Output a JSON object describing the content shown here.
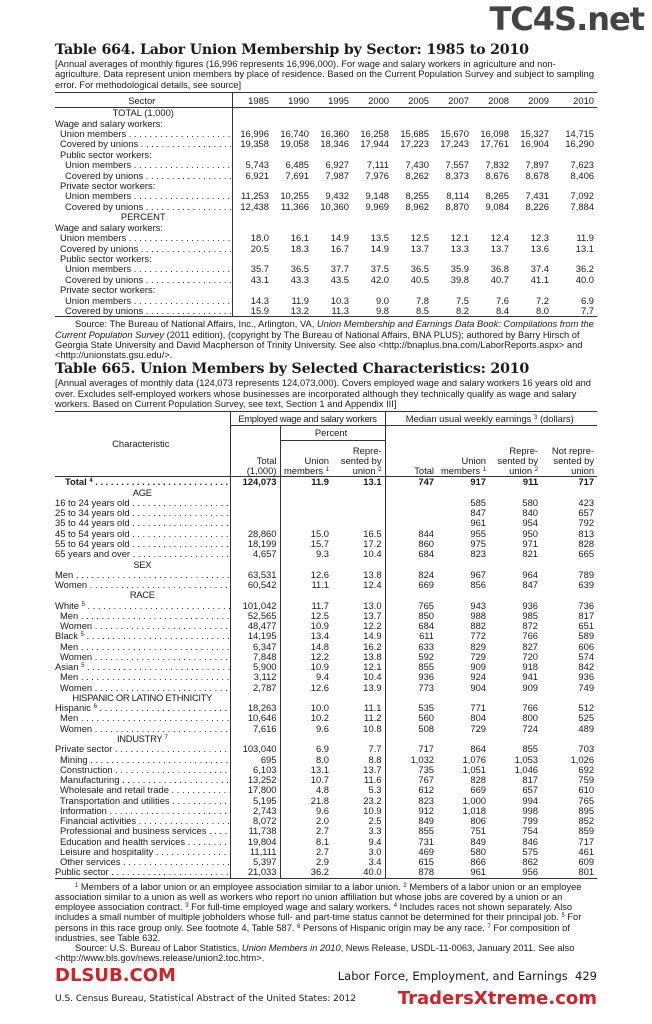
{
  "watermarks": {
    "top": "TC4S.net",
    "middle": "DLSUB.COM",
    "bottom": "TradersXtreme.com"
  },
  "table664": {
    "title": "Table 664. Labor Union Membership by Sector: 1985 to 2010",
    "intro": "[Annual averages of monthly figures (16,996 represents 16,996,000). For wage and salary workers in agriculture and non-agriculture. Data represent union members by place of residence. Based on the Current Population Survey and subject to sampling error. For methodological details, see source]",
    "sector_header": "Sector",
    "years": [
      "1985",
      "1990",
      "1995",
      "2000",
      "2005",
      "2007",
      "2008",
      "2009",
      "2010"
    ],
    "rows": [
      {
        "type": "section",
        "label": "TOTAL (1,000)"
      },
      {
        "type": "group",
        "label": "Wage and salary workers:",
        "indent": 0
      },
      {
        "type": "data",
        "label": "Union members",
        "indent": 1,
        "values": [
          "16,996",
          "16,740",
          "16,360",
          "16,258",
          "15,685",
          "15,670",
          "16,098",
          "15,327",
          "14,715"
        ]
      },
      {
        "type": "data",
        "label": "Covered by unions",
        "indent": 1,
        "values": [
          "19,358",
          "19,058",
          "18,346",
          "17,944",
          "17,223",
          "17,243",
          "17,761",
          "16,904",
          "16,290"
        ]
      },
      {
        "type": "group",
        "label": "Public sector workers:",
        "indent": 1
      },
      {
        "type": "data",
        "label": "Union members",
        "indent": 2,
        "values": [
          "5,743",
          "6,485",
          "6,927",
          "7,111",
          "7,430",
          "7,557",
          "7,832",
          "7,897",
          "7,623"
        ]
      },
      {
        "type": "data",
        "label": "Covered by unions",
        "indent": 2,
        "values": [
          "6,921",
          "7,691",
          "7,987",
          "7,976",
          "8,262",
          "8,373",
          "8,676",
          "8,678",
          "8,406"
        ]
      },
      {
        "type": "group",
        "label": "Private sector workers:",
        "indent": 1
      },
      {
        "type": "data",
        "label": "Union members",
        "indent": 2,
        "values": [
          "11,253",
          "10,255",
          "9,432",
          "9,148",
          "8,255",
          "8,114",
          "8,265",
          "7,431",
          "7,092"
        ]
      },
      {
        "type": "data",
        "label": "Covered by unions",
        "indent": 2,
        "values": [
          "12,438",
          "11,366",
          "10,360",
          "9,969",
          "8,962",
          "8,870",
          "9,084",
          "8,226",
          "7,884"
        ]
      },
      {
        "type": "section",
        "label": "PERCENT"
      },
      {
        "type": "group",
        "label": "Wage and salary workers:",
        "indent": 0
      },
      {
        "type": "data",
        "label": "Union members",
        "indent": 1,
        "values": [
          "18.0",
          "16.1",
          "14.9",
          "13.5",
          "12.5",
          "12.1",
          "12.4",
          "12.3",
          "11.9"
        ]
      },
      {
        "type": "data",
        "label": "Covered by unions",
        "indent": 1,
        "values": [
          "20.5",
          "18.3",
          "16.7",
          "14.9",
          "13.7",
          "13.3",
          "13.7",
          "13.6",
          "13.1"
        ]
      },
      {
        "type": "group",
        "label": "Public sector workers:",
        "indent": 1
      },
      {
        "type": "data",
        "label": "Union members",
        "indent": 2,
        "values": [
          "35.7",
          "36.5",
          "37.7",
          "37.5",
          "36.5",
          "35.9",
          "36.8",
          "37.4",
          "36.2"
        ]
      },
      {
        "type": "data",
        "label": "Covered by unions",
        "indent": 2,
        "values": [
          "43.1",
          "43.3",
          "43.5",
          "42.0",
          "40.5",
          "39.8",
          "40.7",
          "41.1",
          "40.0"
        ]
      },
      {
        "type": "group",
        "label": "Private sector workers:",
        "indent": 1
      },
      {
        "type": "data",
        "label": "Union members",
        "indent": 2,
        "values": [
          "14.3",
          "11.9",
          "10.3",
          "9.0",
          "7.8",
          "7.5",
          "7.6",
          "7.2",
          "6.9"
        ]
      },
      {
        "type": "data",
        "label": "Covered by unions",
        "indent": 2,
        "values": [
          "15.9",
          "13.2",
          "11.3",
          "9.8",
          "8.5",
          "8.2",
          "8.4",
          "8.0",
          "7.7"
        ]
      }
    ],
    "source": [
      {
        "text": "Source: The Bureau of National Affairs, Inc., Arlington, VA, ",
        "italic": false
      },
      {
        "text": "Union Membership and Earnings Data Book: Compilations from the Current Population Survey",
        "italic": true
      },
      {
        "text": " (2011 edition), (copyright by The Bureau of National Affairs, BNA PLUS); authored by Barry Hirsch of Georgia State University and David Macpherson of Trinity University. See also <http://bnaplus.bna.com/LaborReports.aspx> and <http://unionstats.gsu.edu/>.",
        "italic": false
      }
    ]
  },
  "table665": {
    "title": "Table 665. Union Members by Selected Characteristics: 2010",
    "intro": "[Annual averages of monthly data (124,073 represents 124,073,000). Covers employed wage and  salary workers 16 years old and over. Excludes self-employed workers whose businesses are incorporated although they technically qualify as  wage and salary workers. Based on Current Population Survey, see text, Section 1 and Appendix III]",
    "headers": {
      "characteristic": "Characteristic",
      "employed": "Employed wage and salary workers",
      "median": "Median usual weekly earnings",
      "median_sup": "3",
      "median_unit": "(dollars)",
      "percent": "Percent",
      "emp_total": [
        "Total",
        "(1,000)"
      ],
      "emp_union": {
        "lines": [
          "Union",
          "members"
        ],
        "sup": "1"
      },
      "emp_repr": {
        "lines": [
          "Repre-",
          "sented by",
          "union"
        ],
        "sup": "2"
      },
      "earn_total": [
        "Total"
      ],
      "earn_union": {
        "lines": [
          "Union",
          "members"
        ],
        "sup": "1"
      },
      "earn_repr": {
        "lines": [
          "Repre-",
          "sented by",
          "union"
        ],
        "sup": "2"
      },
      "earn_not": {
        "lines": [
          "Not repre-",
          "sented by",
          "union"
        ],
        "sup": ""
      }
    },
    "rows": [
      {
        "type": "data",
        "label": "Total",
        "sup": "4",
        "bold": true,
        "indent": 0,
        "values": [
          "124,073",
          "11.9",
          "13.1",
          "747",
          "917",
          "911",
          "717"
        ]
      },
      {
        "type": "section",
        "label": "AGE"
      },
      {
        "type": "data",
        "label": "16 to 24 years old",
        "indent": 0,
        "values": [
          null,
          null,
          null,
          null,
          "585",
          "580",
          "423"
        ]
      },
      {
        "type": "data",
        "label": "25 to 34 years old",
        "indent": 0,
        "values": [
          null,
          null,
          null,
          null,
          "847",
          "840",
          "657"
        ]
      },
      {
        "type": "data",
        "label": "35 to 44 years old",
        "indent": 0,
        "values": [
          null,
          null,
          null,
          null,
          "961",
          "954",
          "792"
        ]
      },
      {
        "type": "data",
        "label": "45 to 54 years old",
        "indent": 0,
        "values": [
          "28,860",
          "15.0",
          "16.5",
          "844",
          "955",
          "950",
          "813"
        ]
      },
      {
        "type": "data",
        "label": "55 to 64 years old",
        "indent": 0,
        "values": [
          "18,199",
          "15.7",
          "17.2",
          "860",
          "975",
          "971",
          "828"
        ]
      },
      {
        "type": "data",
        "label": "65 years and over",
        "indent": 0,
        "values": [
          "4,657",
          "9.3",
          "10.4",
          "684",
          "823",
          "821",
          "665"
        ]
      },
      {
        "type": "section",
        "label": "SEX"
      },
      {
        "type": "data",
        "label": "Men",
        "indent": 0,
        "values": [
          "63,531",
          "12.6",
          "13.8",
          "824",
          "967",
          "964",
          "789"
        ]
      },
      {
        "type": "data",
        "label": "Women",
        "indent": 0,
        "values": [
          "60,542",
          "11.1",
          "12.4",
          "669",
          "856",
          "847",
          "639"
        ]
      },
      {
        "type": "section",
        "label": "RACE"
      },
      {
        "type": "data",
        "label": "White",
        "sup": "5",
        "indent": 0,
        "values": [
          "101,042",
          "11.7",
          "13.0",
          "765",
          "943",
          "936",
          "736"
        ]
      },
      {
        "type": "data",
        "label": "Men",
        "indent": 1,
        "values": [
          "52,565",
          "12.5",
          "13.7",
          "850",
          "988",
          "985",
          "817"
        ]
      },
      {
        "type": "data",
        "label": "Women",
        "indent": 1,
        "values": [
          "48,477",
          "10.9",
          "12.2",
          "684",
          "882",
          "872",
          "651"
        ]
      },
      {
        "type": "data",
        "label": "Black",
        "sup": "5",
        "indent": 0,
        "values": [
          "14,195",
          "13.4",
          "14.9",
          "611",
          "772",
          "766",
          "589"
        ]
      },
      {
        "type": "data",
        "label": "Men",
        "indent": 1,
        "values": [
          "6,347",
          "14.8",
          "16.2",
          "633",
          "829",
          "827",
          "606"
        ]
      },
      {
        "type": "data",
        "label": "Women",
        "indent": 1,
        "values": [
          "7,848",
          "12.2",
          "13.8",
          "592",
          "729",
          "720",
          "574"
        ]
      },
      {
        "type": "data",
        "label": "Asian",
        "sup": "5",
        "indent": 0,
        "values": [
          "5,900",
          "10.9",
          "12.1",
          "855",
          "909",
          "918",
          "842"
        ]
      },
      {
        "type": "data",
        "label": "Men",
        "indent": 1,
        "values": [
          "3,112",
          "9.4",
          "10.4",
          "936",
          "924",
          "941",
          "936"
        ]
      },
      {
        "type": "data",
        "label": "Women",
        "indent": 1,
        "values": [
          "2,787",
          "12.6",
          "13.9",
          "773",
          "904",
          "909",
          "749"
        ]
      },
      {
        "type": "section",
        "label": "HISPANIC OR LATINO ETHNICITY"
      },
      {
        "type": "data",
        "label": "Hispanic",
        "sup": "6",
        "indent": 0,
        "values": [
          "18,263",
          "10.0",
          "11.1",
          "535",
          "771",
          "766",
          "512"
        ]
      },
      {
        "type": "data",
        "label": "Men",
        "indent": 1,
        "values": [
          "10,646",
          "10.2",
          "11.2",
          "560",
          "804",
          "800",
          "525"
        ]
      },
      {
        "type": "data",
        "label": "Women",
        "indent": 1,
        "values": [
          "7,616",
          "9.6",
          "10.8",
          "508",
          "729",
          "724",
          "489"
        ]
      },
      {
        "type": "section",
        "label": "INDUSTRY",
        "sup": "7"
      },
      {
        "type": "data",
        "label": "Private sector",
        "indent": 0,
        "values": [
          "103,040",
          "6.9",
          "7.7",
          "717",
          "864",
          "855",
          "703"
        ]
      },
      {
        "type": "data",
        "label": "Mining",
        "indent": 1,
        "values": [
          "695",
          "8.0",
          "8.8",
          "1,032",
          "1,076",
          "1,053",
          "1,026"
        ]
      },
      {
        "type": "data",
        "label": "Construction",
        "indent": 1,
        "values": [
          "6,103",
          "13.1",
          "13.7",
          "735",
          "1,051",
          "1,046",
          "692"
        ]
      },
      {
        "type": "data",
        "label": "Manufacturing",
        "indent": 1,
        "values": [
          "13,252",
          "10.7",
          "11.6",
          "767",
          "828",
          "817",
          "759"
        ]
      },
      {
        "type": "data",
        "label": "Wholesale and retail trade",
        "indent": 1,
        "values": [
          "17,800",
          "4.8",
          "5.3",
          "612",
          "669",
          "657",
          "610"
        ]
      },
      {
        "type": "data",
        "label": "Transportation and utilities",
        "indent": 1,
        "values": [
          "5,195",
          "21.8",
          "23.2",
          "823",
          "1,000",
          "994",
          "765"
        ]
      },
      {
        "type": "data",
        "label": "Information",
        "indent": 1,
        "values": [
          "2,743",
          "9.6",
          "10.9",
          "912",
          "1,018",
          "998",
          "895"
        ]
      },
      {
        "type": "data",
        "label": "Financial activities",
        "indent": 1,
        "values": [
          "8,072",
          "2.0",
          "2.5",
          "849",
          "806",
          "799",
          "852"
        ]
      },
      {
        "type": "data",
        "label": "Professional and business services",
        "indent": 1,
        "values": [
          "11,738",
          "2.7",
          "3.3",
          "855",
          "751",
          "754",
          "859"
        ]
      },
      {
        "type": "data",
        "label": "Education and health services",
        "indent": 1,
        "values": [
          "19,804",
          "8.1",
          "9.4",
          "731",
          "849",
          "846",
          "717"
        ]
      },
      {
        "type": "data",
        "label": "Leisure and hospitality",
        "indent": 1,
        "values": [
          "11,111",
          "2.7",
          "3.0",
          "469",
          "580",
          "575",
          "461"
        ]
      },
      {
        "type": "data",
        "label": "Other services",
        "indent": 1,
        "values": [
          "5,397",
          "2.9",
          "3.4",
          "615",
          "866",
          "862",
          "609"
        ]
      },
      {
        "type": "data",
        "label": "Public sector",
        "indent": 0,
        "values": [
          "21,033",
          "36.2",
          "40.0",
          "878",
          "961",
          "956",
          "801"
        ]
      }
    ],
    "footnotes": [
      {
        "num": "1",
        "text": " Members of a labor union or an employee association similar to a labor union. "
      },
      {
        "num": "2",
        "text": " Members of a labor union or an employee association similar to a union as well as workers who report no union affiliation but whose jobs are covered by a union or an employee association contract. "
      },
      {
        "num": "3",
        "text": " For full-time employed wage and salary workers. "
      },
      {
        "num": "4",
        "text": " Includes races not shown separately. Also includes a small number of multiple jobholders whose full- and part-time status cannot be determined for their principal job. "
      },
      {
        "num": "5",
        "text": " For persons in this race group only. See footnote 4, Table 587. "
      },
      {
        "num": "6",
        "text": " Persons of Hispanic origin may be any race. "
      },
      {
        "num": "7",
        "text": " For composition of industries, see Table 632."
      }
    ],
    "source": [
      {
        "text": "Source: U.S. Bureau of Labor Statistics, ",
        "italic": false
      },
      {
        "text": "Union Members in 2010",
        "italic": true
      },
      {
        "text": ", News Release, USDL-11-0063, January 2011. See also <http://www.bls.gov/news.release/union2.toc.htm>.",
        "italic": false
      }
    ]
  },
  "page_footer": {
    "section": "Labor Force, Employment, and Earnings",
    "page": "429",
    "publication": "U.S. Census Bureau, Statistical Abstract of the United States: 2012"
  }
}
